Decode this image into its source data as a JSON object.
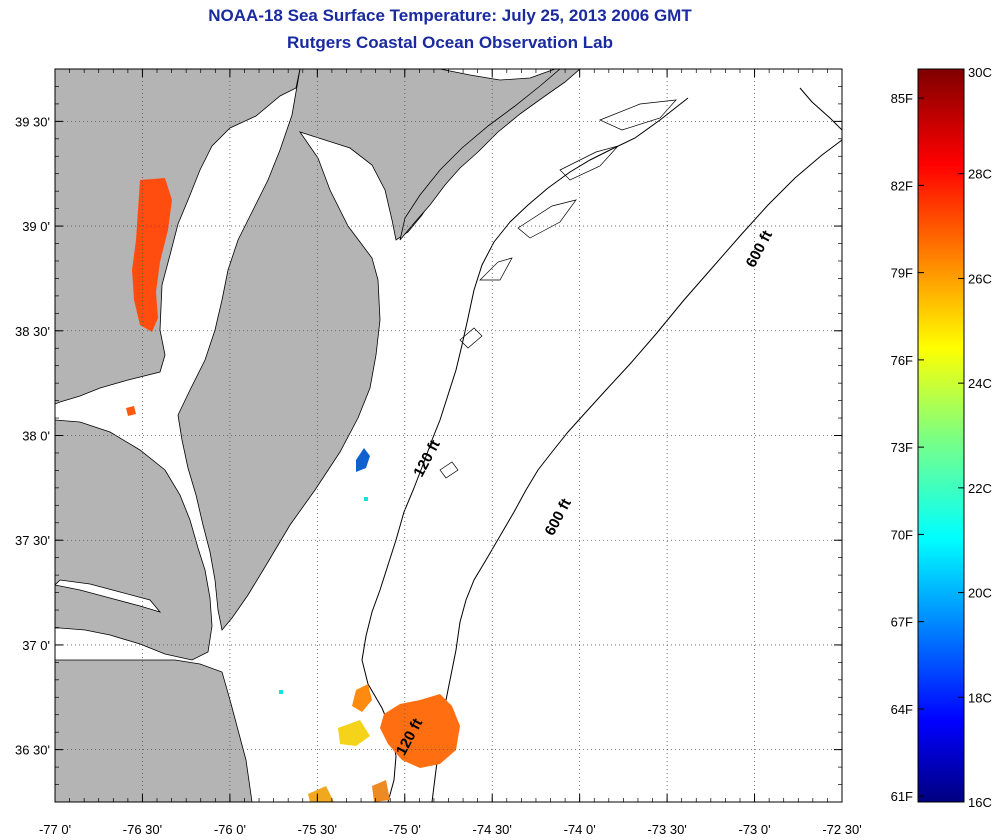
{
  "title": "NOAA-18 Sea Surface Temperature:  July 25, 2013 2006 GMT",
  "subtitle": "Rutgers Coastal Ocean Observation Lab",
  "map": {
    "lon_range": [
      -77.0,
      -72.5
    ],
    "lat_range": [
      36.25,
      39.75
    ],
    "lon_ticks": [
      {
        "v": -77.0,
        "label": "-77 0'"
      },
      {
        "v": -76.5,
        "label": "-76 30'"
      },
      {
        "v": -76.0,
        "label": "-76 0'"
      },
      {
        "v": -75.5,
        "label": "-75 30'"
      },
      {
        "v": -75.0,
        "label": "-75 0'"
      },
      {
        "v": -74.5,
        "label": "-74 30'"
      },
      {
        "v": -74.0,
        "label": "-74 0'"
      },
      {
        "v": -73.5,
        "label": "-73 30'"
      },
      {
        "v": -73.0,
        "label": "-73 0'"
      },
      {
        "v": -72.5,
        "label": "-72 30'"
      }
    ],
    "lat_ticks": [
      {
        "v": 36.5,
        "label": "36 30'"
      },
      {
        "v": 37.0,
        "label": "37 0'"
      },
      {
        "v": 37.5,
        "label": "37 30'"
      },
      {
        "v": 38.0,
        "label": "38 0'"
      },
      {
        "v": 38.5,
        "label": "38 30'"
      },
      {
        "v": 39.0,
        "label": "39 0'"
      },
      {
        "v": 39.5,
        "label": "39 30'"
      }
    ],
    "contour_labels": [
      {
        "text": "120 ft",
        "lon": -74.85,
        "lat": 37.88
      },
      {
        "text": "600 ft",
        "lon": -74.1,
        "lat": 37.6
      },
      {
        "text": "600 ft",
        "lon": -72.95,
        "lat": 38.88
      },
      {
        "text": "120 ft",
        "lon": -74.95,
        "lat": 36.55
      }
    ],
    "land_color": "#b4b4b4",
    "grid": true
  },
  "colorbar": {
    "min_c": 16,
    "max_c": 30,
    "celsius_ticks": [
      {
        "v": 30,
        "label": "30C"
      },
      {
        "v": 28,
        "label": "28C"
      },
      {
        "v": 26,
        "label": "26C"
      },
      {
        "v": 24,
        "label": "24C"
      },
      {
        "v": 22,
        "label": "22C"
      },
      {
        "v": 20,
        "label": "20C"
      },
      {
        "v": 18,
        "label": "18C"
      },
      {
        "v": 16,
        "label": "16C"
      }
    ],
    "fahrenheit_ticks": [
      {
        "v": 85,
        "label": "85F"
      },
      {
        "v": 82,
        "label": "82F"
      },
      {
        "v": 79,
        "label": "79F"
      },
      {
        "v": 76,
        "label": "76F"
      },
      {
        "v": 73,
        "label": "73F"
      },
      {
        "v": 70,
        "label": "70F"
      },
      {
        "v": 67,
        "label": "67F"
      },
      {
        "v": 64,
        "label": "64F"
      },
      {
        "v": 61,
        "label": "61F"
      }
    ]
  }
}
